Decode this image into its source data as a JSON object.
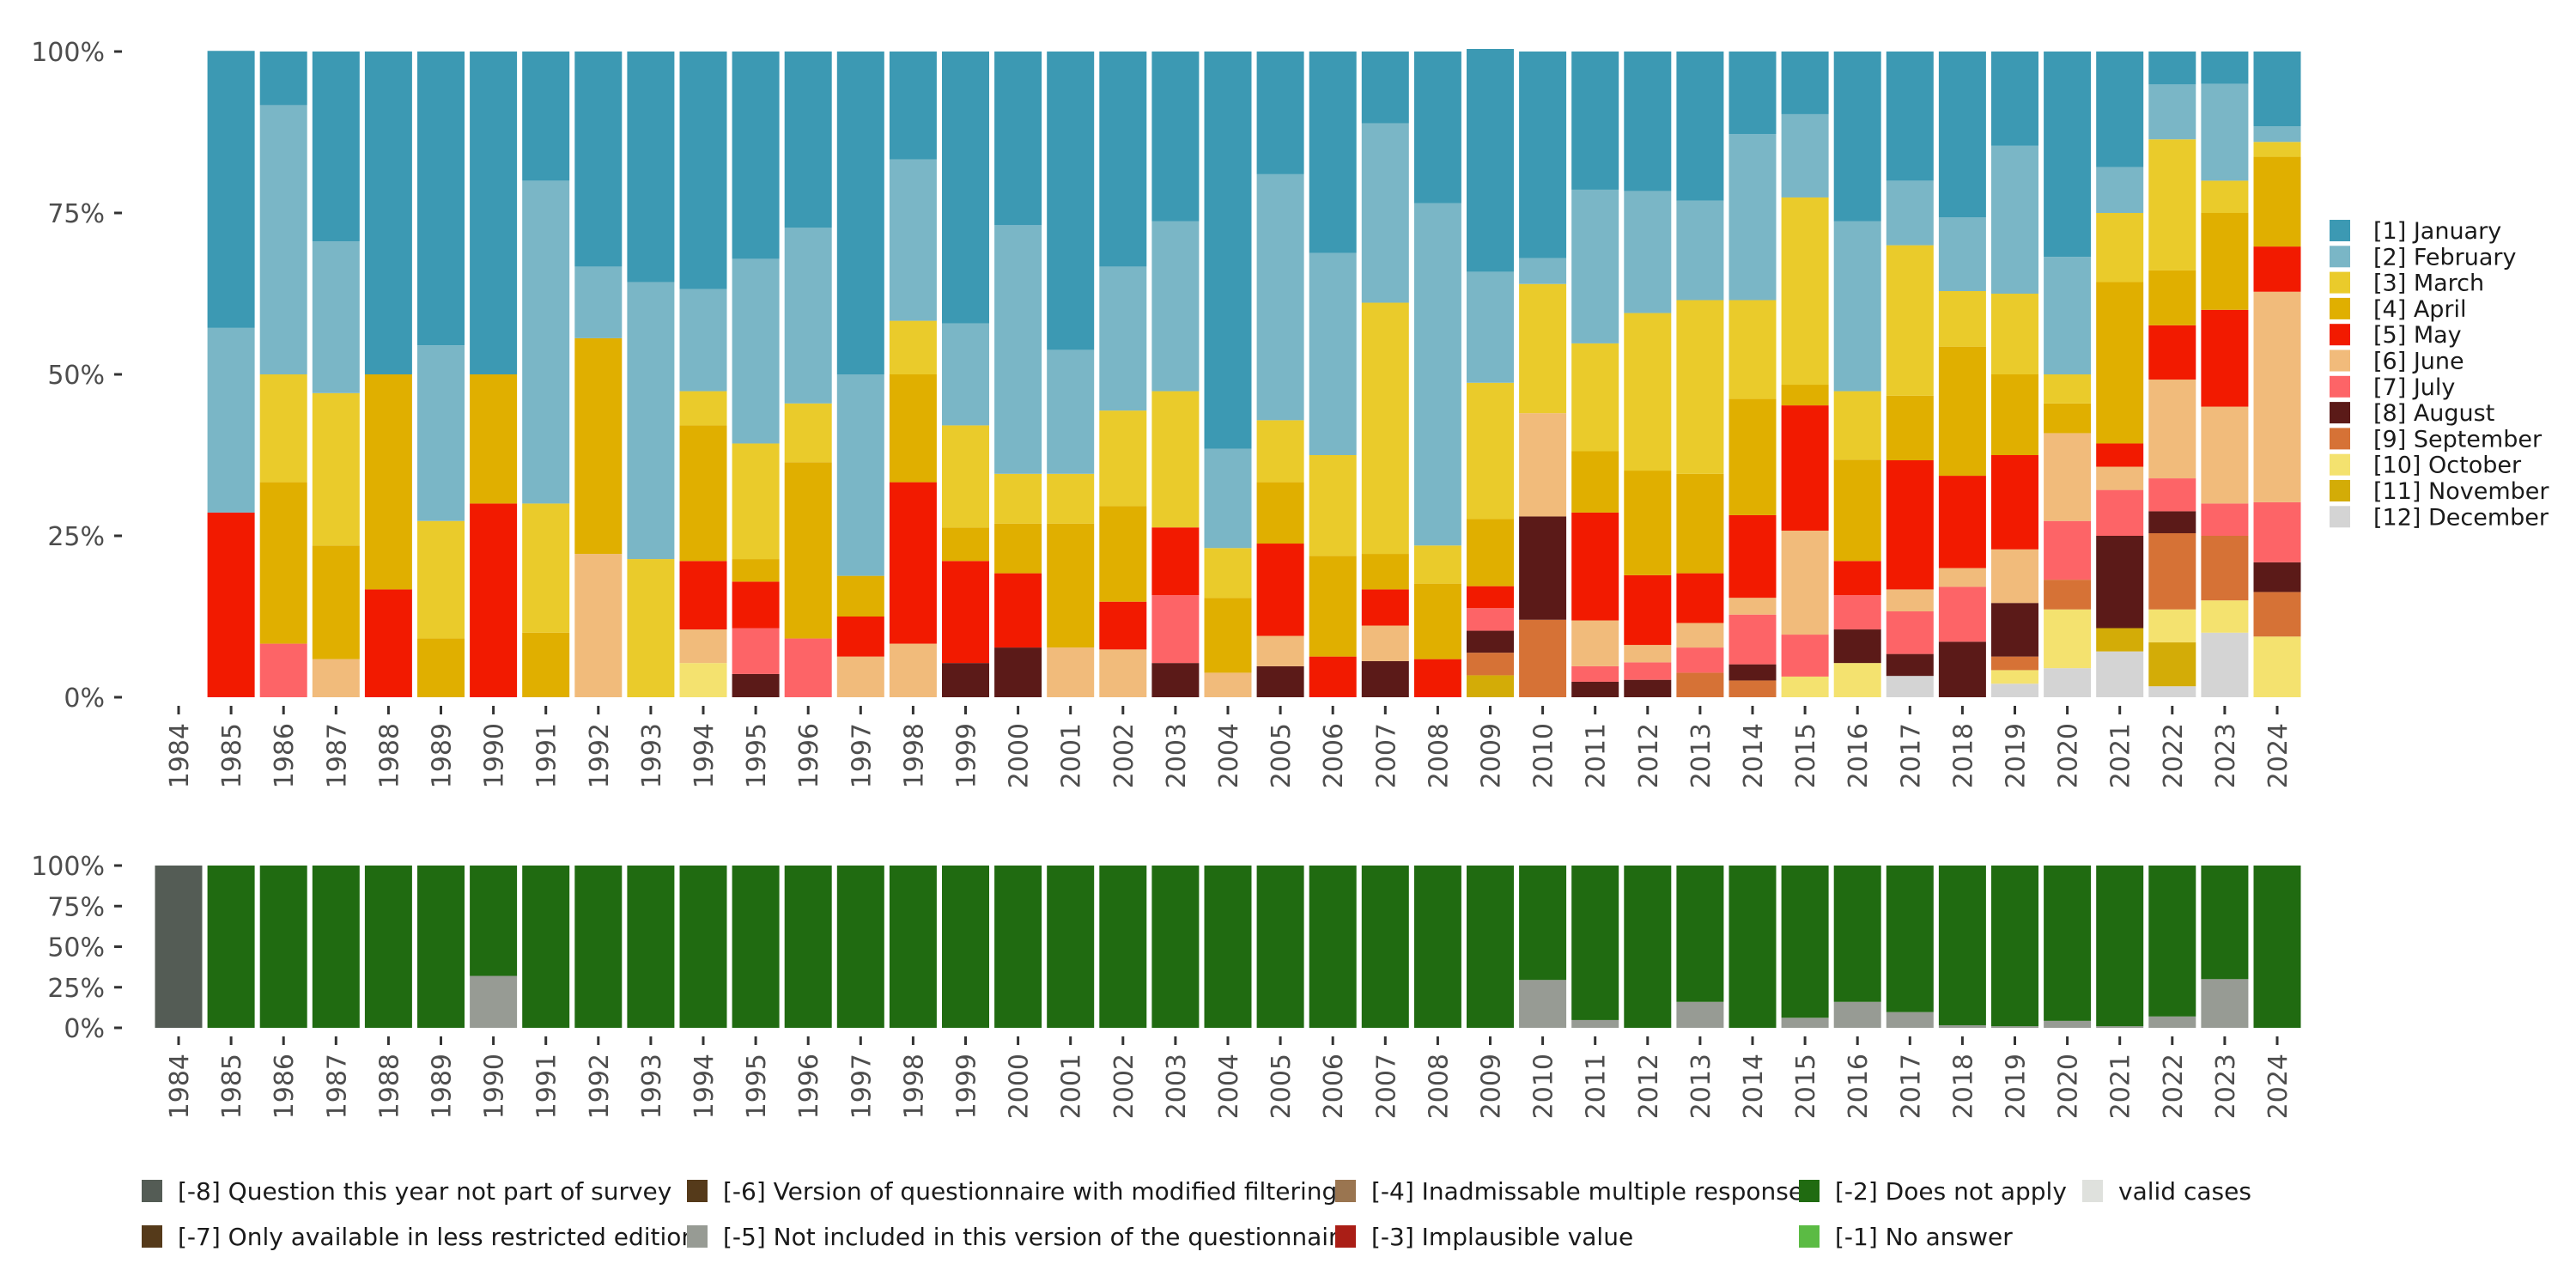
{
  "chart_data": [
    {
      "type": "bar",
      "stacked": true,
      "normalized": true,
      "title": "",
      "xlabel": "",
      "ylabel": "",
      "ylim": [
        0,
        100
      ],
      "y_ticks": [
        "0%",
        "25%",
        "50%",
        "75%",
        "100%"
      ],
      "grid": false,
      "legend_position": "right",
      "categories": [
        "1984",
        "1985",
        "1986",
        "1987",
        "1988",
        "1989",
        "1990",
        "1991",
        "1992",
        "1993",
        "1994",
        "1995",
        "1996",
        "1997",
        "1998",
        "1999",
        "2000",
        "2001",
        "2002",
        "2003",
        "2004",
        "2005",
        "2006",
        "2007",
        "2008",
        "2009",
        "2010",
        "2011",
        "2012",
        "2013",
        "2014",
        "2015",
        "2016",
        "2017",
        "2018",
        "2019",
        "2020",
        "2021",
        "2022",
        "2023",
        "2024"
      ],
      "series": [
        {
          "name": "[1] January",
          "color": "#3c99b3",
          "values": [
            0,
            42.9,
            8.3,
            29.4,
            50,
            45.5,
            50,
            20,
            33.3,
            35.7,
            36.8,
            32.1,
            27.3,
            50,
            16.7,
            42.1,
            26.9,
            46.2,
            33.3,
            26.3,
            61.5,
            19,
            31.2,
            11.1,
            23.5,
            34.5,
            32,
            21.4,
            21.6,
            23.1,
            12.8,
            9.7,
            26.3,
            20,
            25.7,
            14.6,
            31.8,
            17.9,
            5.1,
            5,
            11.6
          ]
        },
        {
          "name": "[2] February",
          "color": "#7ab6c6",
          "values": [
            0,
            28.6,
            41.7,
            23.5,
            0,
            27.2,
            0,
            50,
            11.1,
            42.9,
            15.8,
            28.6,
            27.2,
            31.2,
            25,
            15.8,
            38.5,
            19.2,
            22.3,
            26.3,
            15.4,
            38.1,
            31.3,
            27.8,
            53,
            17.2,
            4,
            23.8,
            18.9,
            15.4,
            25.7,
            12.9,
            26.3,
            10,
            11.4,
            22.9,
            18.2,
            7.1,
            8.5,
            15,
            2.4
          ]
        },
        {
          "name": "[3] March",
          "color": "#eacb2b",
          "values": [
            0,
            0,
            16.7,
            23.6,
            0,
            18.2,
            0,
            20,
            0,
            21.4,
            5.3,
            17.9,
            9.1,
            0,
            8.3,
            15.8,
            7.7,
            7.7,
            14.8,
            21.1,
            7.7,
            9.6,
            15.6,
            38.9,
            5.9,
            21.1,
            20,
            16.7,
            24.4,
            26.9,
            15.3,
            29,
            10.6,
            23.3,
            8.6,
            12.5,
            4.5,
            10.7,
            20.3,
            5,
            2.3
          ]
        },
        {
          "name": "[4] April",
          "color": "#e0af00",
          "values": [
            0,
            0,
            25,
            17.6,
            33.3,
            9.1,
            20,
            10,
            33.4,
            0,
            21,
            3.5,
            27.3,
            6.3,
            16.7,
            5.2,
            7.7,
            19.2,
            14.8,
            0,
            11.6,
            9.5,
            15.6,
            5.5,
            11.7,
            10.4,
            0,
            9.5,
            16.2,
            15.4,
            18,
            3.2,
            15.7,
            10,
            20,
            12.5,
            4.6,
            25,
            8.5,
            15,
            13.9
          ]
        },
        {
          "name": "[5] May",
          "color": "#f21a00",
          "values": [
            0,
            28.6,
            0,
            0,
            16.7,
            0,
            30,
            0,
            0,
            0,
            10.6,
            7.2,
            0,
            6.2,
            25,
            15.8,
            11.5,
            0,
            7.4,
            10.5,
            0,
            14.3,
            6.3,
            5.6,
            5.9,
            3.4,
            0,
            16.7,
            10.8,
            7.7,
            12.8,
            19.4,
            5.3,
            20,
            14.3,
            14.6,
            0,
            3.6,
            8.4,
            15,
            7
          ]
        },
        {
          "name": "[6] June",
          "color": "#f1bb7b",
          "values": [
            0,
            0,
            0,
            5.9,
            0,
            0,
            0,
            0,
            22.2,
            0,
            5.2,
            0,
            0,
            6.3,
            8.3,
            0,
            0,
            7.7,
            7.4,
            0,
            3.8,
            4.7,
            0,
            5.5,
            0,
            0,
            16,
            7.1,
            2.7,
            3.8,
            2.6,
            16.1,
            0,
            3.4,
            2.9,
            8.3,
            13.6,
            3.6,
            15.3,
            15,
            32.6
          ]
        },
        {
          "name": "[7] July",
          "color": "#fd6467",
          "values": [
            0,
            0,
            8.3,
            0,
            0,
            0,
            0,
            0,
            0,
            0,
            0,
            7.1,
            9.1,
            0,
            0,
            0,
            0,
            0,
            0,
            10.5,
            0,
            0,
            0,
            0,
            0,
            3.5,
            0,
            2.4,
            2.7,
            3.9,
            7.7,
            6.5,
            5.3,
            6.6,
            8.5,
            0,
            9.1,
            7.1,
            5.1,
            5,
            9.3
          ]
        },
        {
          "name": "[8] August",
          "color": "#5b1a18",
          "values": [
            0,
            0,
            0,
            0,
            0,
            0,
            0,
            0,
            0,
            0,
            0,
            3.6,
            0,
            0,
            0,
            5.3,
            7.7,
            0,
            0,
            5.3,
            0,
            4.8,
            0,
            5.6,
            0,
            3.4,
            16,
            2.4,
            2.7,
            0,
            2.5,
            0,
            5.2,
            3.4,
            8.6,
            8.3,
            0,
            14.3,
            3.4,
            0,
            4.6
          ]
        },
        {
          "name": "[9] September",
          "color": "#d67236",
          "values": [
            0,
            0,
            0,
            0,
            0,
            0,
            0,
            0,
            0,
            0,
            0,
            0,
            0,
            0,
            0,
            0,
            0,
            0,
            0,
            0,
            0,
            0,
            0,
            0,
            0,
            3.5,
            12,
            0,
            0,
            3.8,
            2.6,
            0,
            0,
            0,
            0,
            2.1,
            4.6,
            0,
            11.8,
            10,
            6.9
          ]
        },
        {
          "name": "[10] October",
          "color": "#f4e26f",
          "values": [
            0,
            0,
            0,
            0,
            0,
            0,
            0,
            0,
            0,
            0,
            5.3,
            0,
            0,
            0,
            0,
            0,
            0,
            0,
            0,
            0,
            0,
            0,
            0,
            0,
            0,
            0,
            0,
            0,
            0,
            0,
            0,
            3.2,
            5.3,
            0,
            0,
            2.1,
            9.1,
            0,
            5.1,
            5,
            9.4
          ]
        },
        {
          "name": "[11] November",
          "color": "#d3ac07",
          "values": [
            0,
            0,
            0,
            0,
            0,
            0,
            0,
            0,
            0,
            0,
            0,
            0,
            0,
            0,
            0,
            0,
            0,
            0,
            0,
            0,
            0,
            0,
            0,
            0,
            0,
            3.4,
            0,
            0,
            0,
            0,
            0,
            0,
            0,
            0,
            0,
            0,
            0,
            3.6,
            6.8,
            0,
            0
          ]
        },
        {
          "name": "[12] December",
          "color": "#d4d4d4",
          "values": [
            0,
            0,
            0,
            0,
            0,
            0,
            0,
            0,
            0,
            0,
            0,
            0,
            0,
            0,
            0,
            0,
            0,
            0,
            0,
            0,
            0,
            0,
            0,
            0,
            0,
            0,
            0,
            0,
            0,
            0,
            0,
            0,
            0,
            3.3,
            0,
            2.1,
            4.5,
            7.1,
            1.7,
            10,
            0
          ]
        }
      ]
    },
    {
      "type": "bar",
      "stacked": true,
      "normalized": true,
      "title": "",
      "xlabel": "",
      "ylabel": "",
      "ylim": [
        0,
        100
      ],
      "y_ticks": [
        "0%",
        "25%",
        "50%",
        "75%",
        "100%"
      ],
      "grid": false,
      "legend_position": "bottom",
      "categories": [
        "1984",
        "1985",
        "1986",
        "1987",
        "1988",
        "1989",
        "1990",
        "1991",
        "1992",
        "1993",
        "1994",
        "1995",
        "1996",
        "1997",
        "1998",
        "1999",
        "2000",
        "2001",
        "2002",
        "2003",
        "2004",
        "2005",
        "2006",
        "2007",
        "2008",
        "2009",
        "2010",
        "2011",
        "2012",
        "2013",
        "2014",
        "2015",
        "2016",
        "2017",
        "2018",
        "2019",
        "2020",
        "2021",
        "2022",
        "2023",
        "2024"
      ],
      "series": [
        {
          "name": "[-8] Question this year not part of survey",
          "color": "#545c55",
          "values": [
            100,
            0,
            0,
            0,
            0,
            0,
            0,
            0,
            0,
            0,
            0,
            0,
            0,
            0,
            0,
            0,
            0,
            0,
            0,
            0,
            0,
            0,
            0,
            0,
            0,
            0,
            0,
            0,
            0,
            0,
            0,
            0,
            0,
            0,
            0,
            0,
            0,
            0,
            0,
            0,
            0
          ]
        },
        {
          "name": "[-2] Does not apply",
          "color": "#206b11",
          "values": [
            0,
            100,
            100,
            100,
            100,
            100,
            68,
            100,
            100,
            100,
            100,
            100,
            100,
            100,
            100,
            100,
            100,
            100,
            100,
            100,
            100,
            100,
            100,
            100,
            100,
            100,
            70.5,
            95.2,
            100,
            84,
            100,
            93.8,
            84,
            90.3,
            98.4,
            99,
            95.7,
            99,
            93,
            70,
            100
          ]
        },
        {
          "name": "[-5] Not included in this version of the questionnaire",
          "color": "#979b94",
          "values": [
            0,
            0,
            0,
            0,
            0,
            0,
            32,
            0,
            0,
            0,
            0,
            0,
            0,
            0,
            0,
            0,
            0,
            0,
            0,
            0,
            0,
            0,
            0,
            0,
            0,
            0,
            29.5,
            4.8,
            0,
            16,
            0,
            6.2,
            16,
            9.7,
            1.6,
            1,
            4.3,
            1,
            7,
            30,
            0
          ]
        }
      ]
    }
  ],
  "legend_months": [
    {
      "label": "[1] January",
      "color": "#3c99b3"
    },
    {
      "label": "[2] February",
      "color": "#7ab6c6"
    },
    {
      "label": "[3] March",
      "color": "#eacb2b"
    },
    {
      "label": "[4] April",
      "color": "#e0af00"
    },
    {
      "label": "[5] May",
      "color": "#f21a00"
    },
    {
      "label": "[6] June",
      "color": "#f1bb7b"
    },
    {
      "label": "[7] July",
      "color": "#fd6467"
    },
    {
      "label": "[8] August",
      "color": "#5b1a18"
    },
    {
      "label": "[9] September",
      "color": "#d67236"
    },
    {
      "label": "[10] October",
      "color": "#f4e26f"
    },
    {
      "label": "[11] November",
      "color": "#d3ac07"
    },
    {
      "label": "[12] December",
      "color": "#d4d4d4"
    }
  ],
  "legend_missing": [
    {
      "label": "[-8] Question this year not part of survey",
      "color": "#545c55"
    },
    {
      "label": "[-7] Only available in less restricted edition",
      "color": "#553a1a"
    },
    {
      "label": "[-6] Version of questionnaire with modified filtering",
      "color": "#553a1a"
    },
    {
      "label": "[-5] Not included in this version of the questionnaire",
      "color": "#979b94"
    },
    {
      "label": "[-4] Inadmissable multiple response",
      "color": "#9a7550"
    },
    {
      "label": "[-3] Implausible value",
      "color": "#aa1e16"
    },
    {
      "label": "[-2] Does not apply",
      "color": "#206b11"
    },
    {
      "label": "[-1] No answer",
      "color": "#5bbb44"
    },
    {
      "label": "valid cases",
      "color": "#dfe1dd"
    }
  ]
}
